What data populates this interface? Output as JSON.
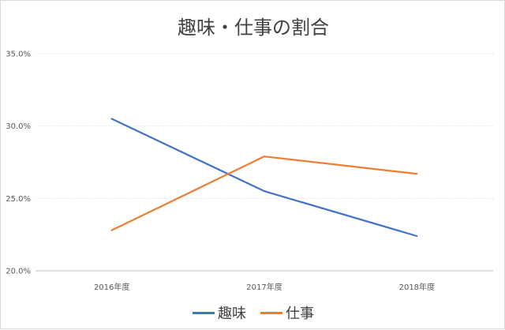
{
  "chart_data": {
    "type": "line",
    "title": "趣味・仕事の割合",
    "categories": [
      "2016年度",
      "2017年度",
      "2018年度"
    ],
    "series": [
      {
        "name": "趣味",
        "values": [
          30.5,
          25.5,
          22.4
        ],
        "color": "#4472c4"
      },
      {
        "name": "仕事",
        "values": [
          22.8,
          27.9,
          26.7
        ],
        "color": "#ed7d31"
      }
    ],
    "ylim": [
      20,
      35
    ],
    "yticks": [
      "20.0%",
      "25.0%",
      "30.0%",
      "35.0%"
    ],
    "ytick_values": [
      20,
      25,
      30,
      35
    ],
    "grid": true,
    "legend": "bottom"
  }
}
